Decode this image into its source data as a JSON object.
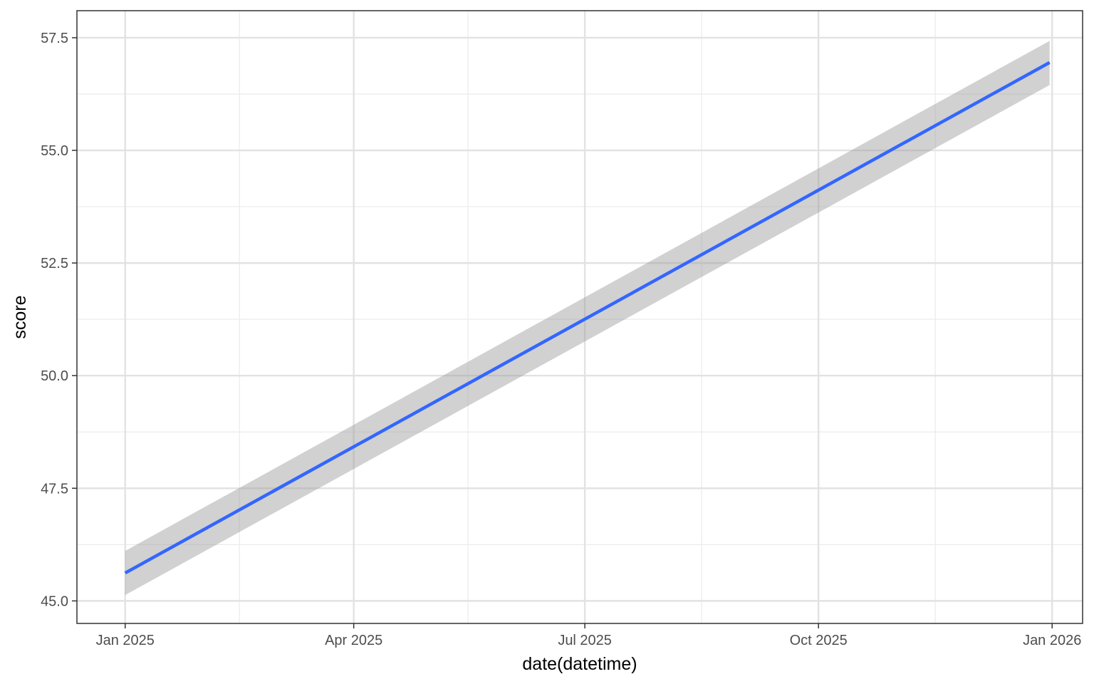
{
  "chart_data": {
    "type": "line",
    "title": "",
    "xlabel": "date(datetime)",
    "ylabel": "score",
    "x_axis": {
      "scale": "date",
      "range": [
        "2024-12-13",
        "2026-01-13"
      ],
      "ticks": [
        {
          "value": "2025-01-01",
          "label": "Jan 2025"
        },
        {
          "value": "2025-04-01",
          "label": "Apr 2025"
        },
        {
          "value": "2025-07-01",
          "label": "Jul 2025"
        },
        {
          "value": "2025-10-01",
          "label": "Oct 2025"
        },
        {
          "value": "2026-01-01",
          "label": "Jan 2026"
        }
      ],
      "minor_ticks": [
        "2025-02-15",
        "2025-05-16",
        "2025-08-16",
        "2025-11-16"
      ]
    },
    "y_axis": {
      "range": [
        44.5,
        58.1
      ],
      "ticks": [
        {
          "value": 45.0,
          "label": "45.0"
        },
        {
          "value": 47.5,
          "label": "47.5"
        },
        {
          "value": 50.0,
          "label": "50.0"
        },
        {
          "value": 52.5,
          "label": "52.5"
        },
        {
          "value": 55.0,
          "label": "55.0"
        },
        {
          "value": 57.5,
          "label": "57.5"
        }
      ],
      "minor_ticks": [
        46.25,
        48.75,
        51.25,
        53.75,
        56.25
      ]
    },
    "grid": true,
    "legend": "none",
    "series": [
      {
        "kind": "smooth-fit",
        "color": "#3366FF",
        "x": [
          "2025-01-01",
          "2025-12-31"
        ],
        "y": [
          45.62,
          56.95
        ],
        "ci_lower": [
          45.13,
          56.45
        ],
        "ci_upper": [
          46.11,
          57.43
        ],
        "ci_color": "#999999"
      }
    ]
  }
}
